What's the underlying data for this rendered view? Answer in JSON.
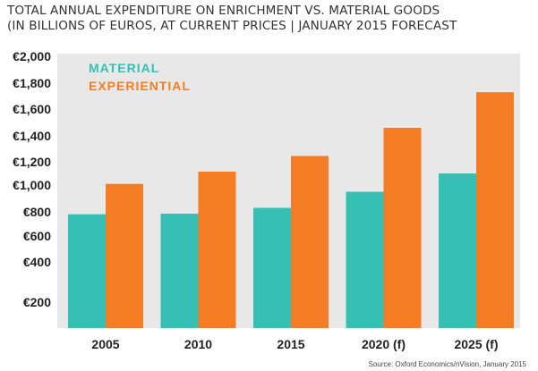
{
  "chart_data": {
    "type": "bar",
    "title": "TOTAL ANNUAL EXPENDITURE ON ENRICHMENT VS. MATERIAL GOODS",
    "subtitle": "(IN BILLIONS OF EUROS, AT CURRENT PRICES | JANUARY 2015 FORECAST",
    "categories": [
      "2005",
      "2010",
      "2015",
      "2020 (f)",
      "2025 (f)"
    ],
    "series": [
      {
        "name": "MATERIAL",
        "color": "#36bfb3",
        "values": [
          780,
          785,
          830,
          950,
          1100
        ]
      },
      {
        "name": "EXPERIENTIAL",
        "color": "#f47c25",
        "values": [
          1010,
          1115,
          1245,
          1460,
          1730
        ]
      }
    ],
    "y_ticks": [
      {
        "value": 2000,
        "label": "€2,000"
      },
      {
        "value": 1800,
        "label": "€1,800"
      },
      {
        "value": 1600,
        "label": "€1,600"
      },
      {
        "value": 1400,
        "label": "€1,400"
      },
      {
        "value": 1200,
        "label": "€1,200"
      },
      {
        "value": 1000,
        "label": "€1,000"
      },
      {
        "value": 800,
        "label": "€800"
      },
      {
        "value": 600,
        "label": "€600"
      },
      {
        "value": 400,
        "label": "€400"
      },
      {
        "value": 200,
        "label": "€200"
      }
    ],
    "ylim": [
      0,
      2000
    ],
    "grid": false,
    "legend_position": "top-left",
    "background_color": "#e8e8e8",
    "source": "Source: Oxford Economics/nVision, January 2015"
  }
}
